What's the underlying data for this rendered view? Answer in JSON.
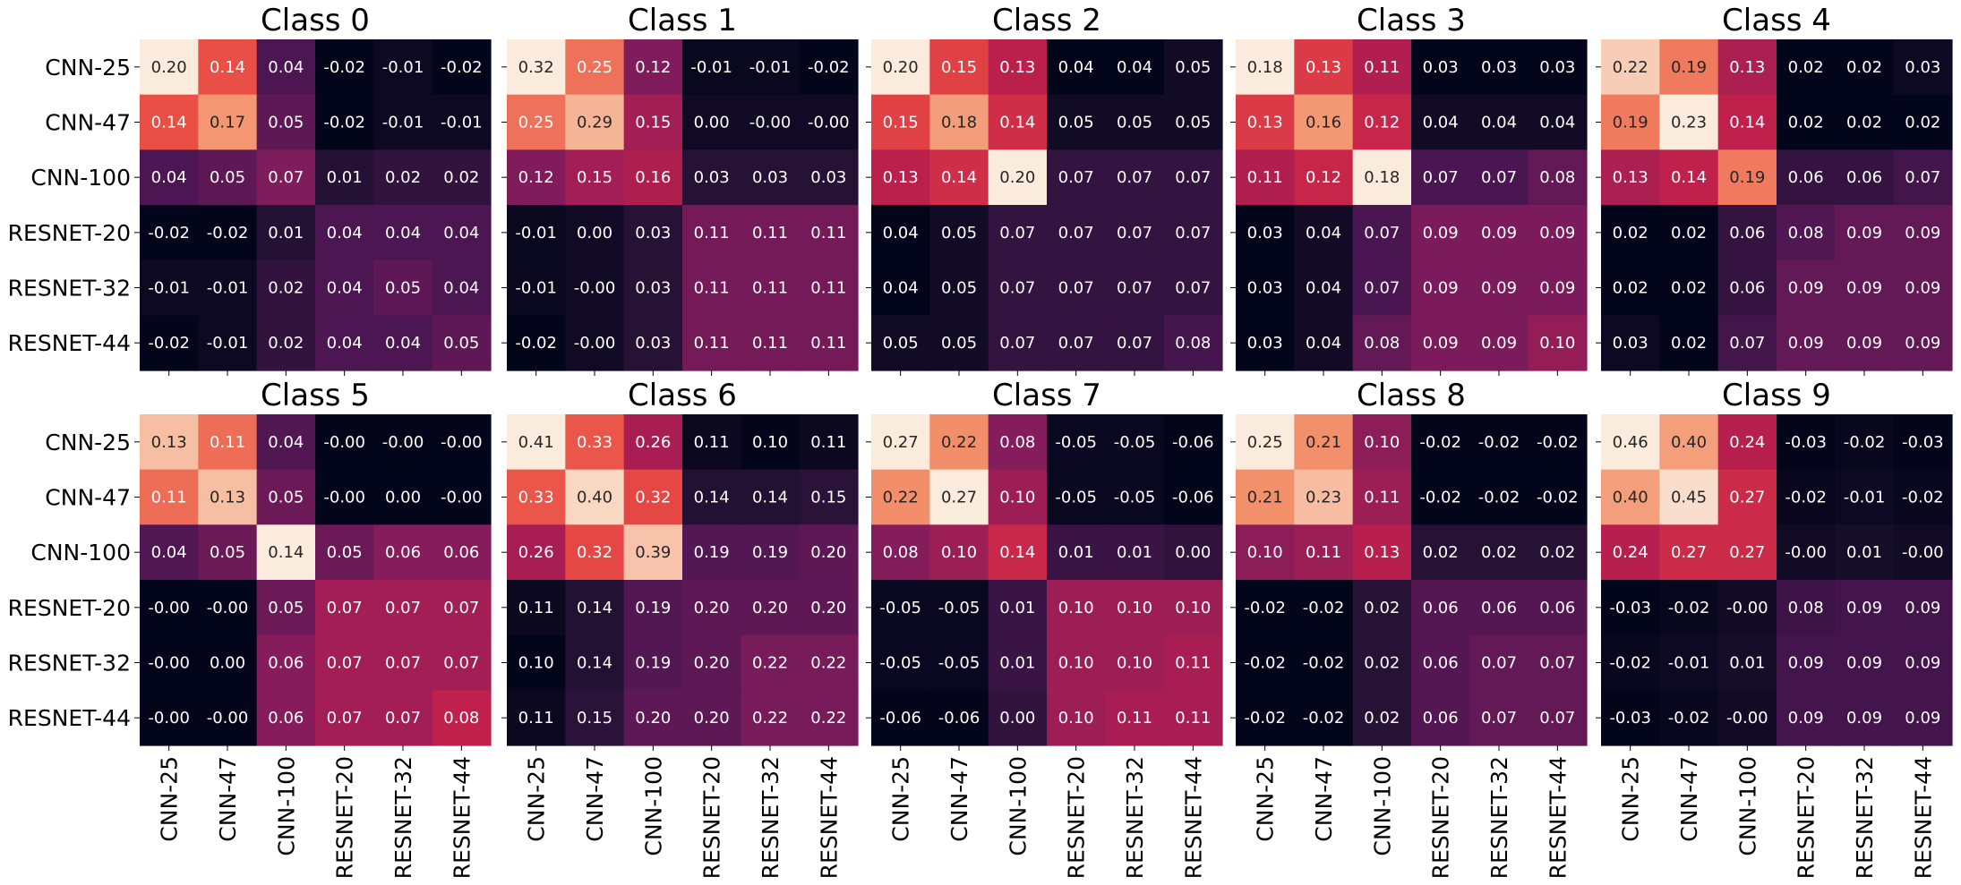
{
  "chart_data": {
    "type": "heatmap",
    "row_labels": [
      "CNN-25",
      "CNN-47",
      "CNN-100",
      "RESNET-20",
      "RESNET-32",
      "RESNET-44"
    ],
    "col_labels": [
      "CNN-25",
      "CNN-47",
      "CNN-100",
      "RESNET-20",
      "RESNET-32",
      "RESNET-44"
    ],
    "layout": {
      "rows": 2,
      "cols": 5
    },
    "colormap": "rocket",
    "panels": [
      {
        "title": "Class 0",
        "matrix": [
          [
            "0.20",
            "0.14",
            "0.04",
            "-0.02",
            "-0.01",
            "-0.02"
          ],
          [
            "0.14",
            "0.17",
            "0.05",
            "-0.02",
            "-0.01",
            "-0.01"
          ],
          [
            "0.04",
            "0.05",
            "0.07",
            "0.01",
            "0.02",
            "0.02"
          ],
          [
            "-0.02",
            "-0.02",
            "0.01",
            "0.04",
            "0.04",
            "0.04"
          ],
          [
            "-0.01",
            "-0.01",
            "0.02",
            "0.04",
            "0.05",
            "0.04"
          ],
          [
            "-0.02",
            "-0.01",
            "0.02",
            "0.04",
            "0.04",
            "0.05"
          ]
        ]
      },
      {
        "title": "Class 1",
        "matrix": [
          [
            "0.32",
            "0.25",
            "0.12",
            "-0.01",
            "-0.01",
            "-0.02"
          ],
          [
            "0.25",
            "0.29",
            "0.15",
            "0.00",
            "-0.00",
            "-0.00"
          ],
          [
            "0.12",
            "0.15",
            "0.16",
            "0.03",
            "0.03",
            "0.03"
          ],
          [
            "-0.01",
            "0.00",
            "0.03",
            "0.11",
            "0.11",
            "0.11"
          ],
          [
            "-0.01",
            "-0.00",
            "0.03",
            "0.11",
            "0.11",
            "0.11"
          ],
          [
            "-0.02",
            "-0.00",
            "0.03",
            "0.11",
            "0.11",
            "0.11"
          ]
        ]
      },
      {
        "title": "Class 2",
        "matrix": [
          [
            "0.20",
            "0.15",
            "0.13",
            "0.04",
            "0.04",
            "0.05"
          ],
          [
            "0.15",
            "0.18",
            "0.14",
            "0.05",
            "0.05",
            "0.05"
          ],
          [
            "0.13",
            "0.14",
            "0.20",
            "0.07",
            "0.07",
            "0.07"
          ],
          [
            "0.04",
            "0.05",
            "0.07",
            "0.07",
            "0.07",
            "0.07"
          ],
          [
            "0.04",
            "0.05",
            "0.07",
            "0.07",
            "0.07",
            "0.07"
          ],
          [
            "0.05",
            "0.05",
            "0.07",
            "0.07",
            "0.07",
            "0.08"
          ]
        ]
      },
      {
        "title": "Class 3",
        "matrix": [
          [
            "0.18",
            "0.13",
            "0.11",
            "0.03",
            "0.03",
            "0.03"
          ],
          [
            "0.13",
            "0.16",
            "0.12",
            "0.04",
            "0.04",
            "0.04"
          ],
          [
            "0.11",
            "0.12",
            "0.18",
            "0.07",
            "0.07",
            "0.08"
          ],
          [
            "0.03",
            "0.04",
            "0.07",
            "0.09",
            "0.09",
            "0.09"
          ],
          [
            "0.03",
            "0.04",
            "0.07",
            "0.09",
            "0.09",
            "0.09"
          ],
          [
            "0.03",
            "0.04",
            "0.08",
            "0.09",
            "0.09",
            "0.10"
          ]
        ]
      },
      {
        "title": "Class 4",
        "matrix": [
          [
            "0.22",
            "0.19",
            "0.13",
            "0.02",
            "0.02",
            "0.03"
          ],
          [
            "0.19",
            "0.23",
            "0.14",
            "0.02",
            "0.02",
            "0.02"
          ],
          [
            "0.13",
            "0.14",
            "0.19",
            "0.06",
            "0.06",
            "0.07"
          ],
          [
            "0.02",
            "0.02",
            "0.06",
            "0.08",
            "0.09",
            "0.09"
          ],
          [
            "0.02",
            "0.02",
            "0.06",
            "0.09",
            "0.09",
            "0.09"
          ],
          [
            "0.03",
            "0.02",
            "0.07",
            "0.09",
            "0.09",
            "0.09"
          ]
        ]
      },
      {
        "title": "Class 5",
        "matrix": [
          [
            "0.13",
            "0.11",
            "0.04",
            "-0.00",
            "-0.00",
            "-0.00"
          ],
          [
            "0.11",
            "0.13",
            "0.05",
            "-0.00",
            "0.00",
            "-0.00"
          ],
          [
            "0.04",
            "0.05",
            "0.14",
            "0.05",
            "0.06",
            "0.06"
          ],
          [
            "-0.00",
            "-0.00",
            "0.05",
            "0.07",
            "0.07",
            "0.07"
          ],
          [
            "-0.00",
            "0.00",
            "0.06",
            "0.07",
            "0.07",
            "0.07"
          ],
          [
            "-0.00",
            "-0.00",
            "0.06",
            "0.07",
            "0.07",
            "0.08"
          ]
        ]
      },
      {
        "title": "Class 6",
        "matrix": [
          [
            "0.41",
            "0.33",
            "0.26",
            "0.11",
            "0.10",
            "0.11"
          ],
          [
            "0.33",
            "0.40",
            "0.32",
            "0.14",
            "0.14",
            "0.15"
          ],
          [
            "0.26",
            "0.32",
            "0.39",
            "0.19",
            "0.19",
            "0.20"
          ],
          [
            "0.11",
            "0.14",
            "0.19",
            "0.20",
            "0.20",
            "0.20"
          ],
          [
            "0.10",
            "0.14",
            "0.19",
            "0.20",
            "0.22",
            "0.22"
          ],
          [
            "0.11",
            "0.15",
            "0.20",
            "0.20",
            "0.22",
            "0.22"
          ]
        ]
      },
      {
        "title": "Class 7",
        "matrix": [
          [
            "0.27",
            "0.22",
            "0.08",
            "-0.05",
            "-0.05",
            "-0.06"
          ],
          [
            "0.22",
            "0.27",
            "0.10",
            "-0.05",
            "-0.05",
            "-0.06"
          ],
          [
            "0.08",
            "0.10",
            "0.14",
            "0.01",
            "0.01",
            "0.00"
          ],
          [
            "-0.05",
            "-0.05",
            "0.01",
            "0.10",
            "0.10",
            "0.10"
          ],
          [
            "-0.05",
            "-0.05",
            "0.01",
            "0.10",
            "0.10",
            "0.11"
          ],
          [
            "-0.06",
            "-0.06",
            "0.00",
            "0.10",
            "0.11",
            "0.11"
          ]
        ]
      },
      {
        "title": "Class 8",
        "matrix": [
          [
            "0.25",
            "0.21",
            "0.10",
            "-0.02",
            "-0.02",
            "-0.02"
          ],
          [
            "0.21",
            "0.23",
            "0.11",
            "-0.02",
            "-0.02",
            "-0.02"
          ],
          [
            "0.10",
            "0.11",
            "0.13",
            "0.02",
            "0.02",
            "0.02"
          ],
          [
            "-0.02",
            "-0.02",
            "0.02",
            "0.06",
            "0.06",
            "0.06"
          ],
          [
            "-0.02",
            "-0.02",
            "0.02",
            "0.06",
            "0.07",
            "0.07"
          ],
          [
            "-0.02",
            "-0.02",
            "0.02",
            "0.06",
            "0.07",
            "0.07"
          ]
        ]
      },
      {
        "title": "Class 9",
        "matrix": [
          [
            "0.46",
            "0.40",
            "0.24",
            "-0.03",
            "-0.02",
            "-0.03"
          ],
          [
            "0.40",
            "0.45",
            "0.27",
            "-0.02",
            "-0.01",
            "-0.02"
          ],
          [
            "0.24",
            "0.27",
            "0.27",
            "-0.00",
            "0.01",
            "-0.00"
          ],
          [
            "-0.03",
            "-0.02",
            "-0.00",
            "0.08",
            "0.09",
            "0.09"
          ],
          [
            "-0.02",
            "-0.01",
            "0.01",
            "0.09",
            "0.09",
            "0.09"
          ],
          [
            "-0.03",
            "-0.02",
            "-0.00",
            "0.09",
            "0.09",
            "0.09"
          ]
        ]
      }
    ]
  }
}
